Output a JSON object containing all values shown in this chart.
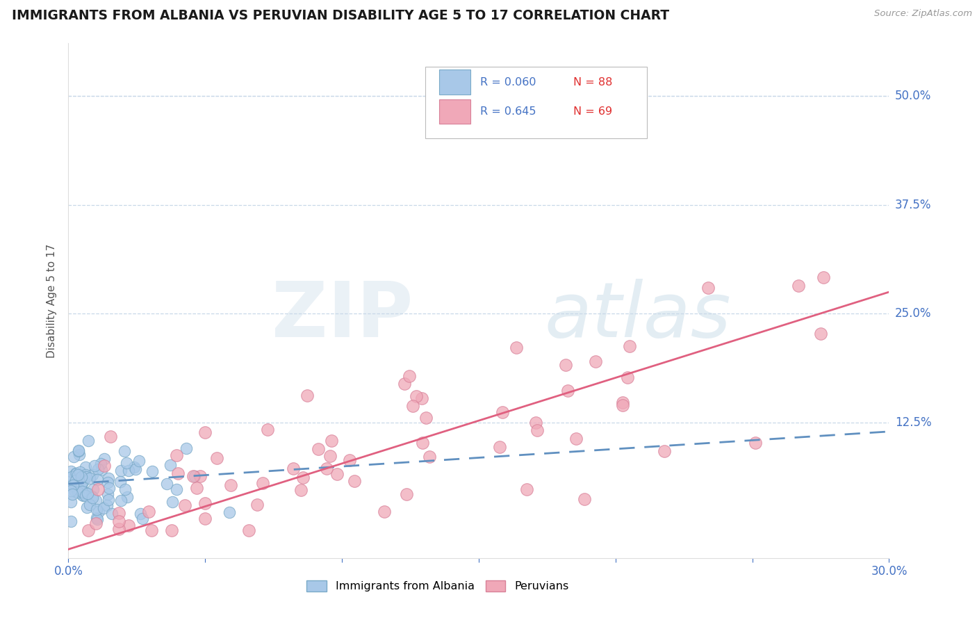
{
  "title": "IMMIGRANTS FROM ALBANIA VS PERUVIAN DISABILITY AGE 5 TO 17 CORRELATION CHART",
  "source_text": "Source: ZipAtlas.com",
  "ylabel": "Disability Age 5 to 17",
  "xlim": [
    0.0,
    0.3
  ],
  "ylim": [
    -0.03,
    0.56
  ],
  "legend_r1": "R = 0.060",
  "legend_n1": "N = 88",
  "legend_r2": "R = 0.645",
  "legend_n2": "N = 69",
  "color_blue_fill": "#a8c8e8",
  "color_blue_edge": "#7aaac8",
  "color_pink_fill": "#f0a8b8",
  "color_pink_edge": "#d88098",
  "color_blue_line": "#6090c0",
  "color_pink_line": "#e06080",
  "color_axis": "#4472C4",
  "color_grid": "#c8d8e8",
  "watermark_zip": "ZIP",
  "watermark_atlas": "atlas",
  "ytick_vals": [
    0.0,
    0.125,
    0.25,
    0.375,
    0.5
  ],
  "ytick_labels": [
    "",
    "12.5%",
    "25.0%",
    "37.5%",
    "50.0%"
  ],
  "xtick_vals": [
    0.0,
    0.05,
    0.1,
    0.15,
    0.2,
    0.25,
    0.3
  ],
  "xtick_labels": [
    "0.0%",
    "",
    "",
    "",
    "",
    "",
    "30.0%"
  ],
  "albania_trendline_x": [
    0.0,
    0.3
  ],
  "albania_trendline_y": [
    0.055,
    0.115
  ],
  "peru_trendline_x": [
    0.0,
    0.3
  ],
  "peru_trendline_y": [
    -0.02,
    0.275
  ]
}
